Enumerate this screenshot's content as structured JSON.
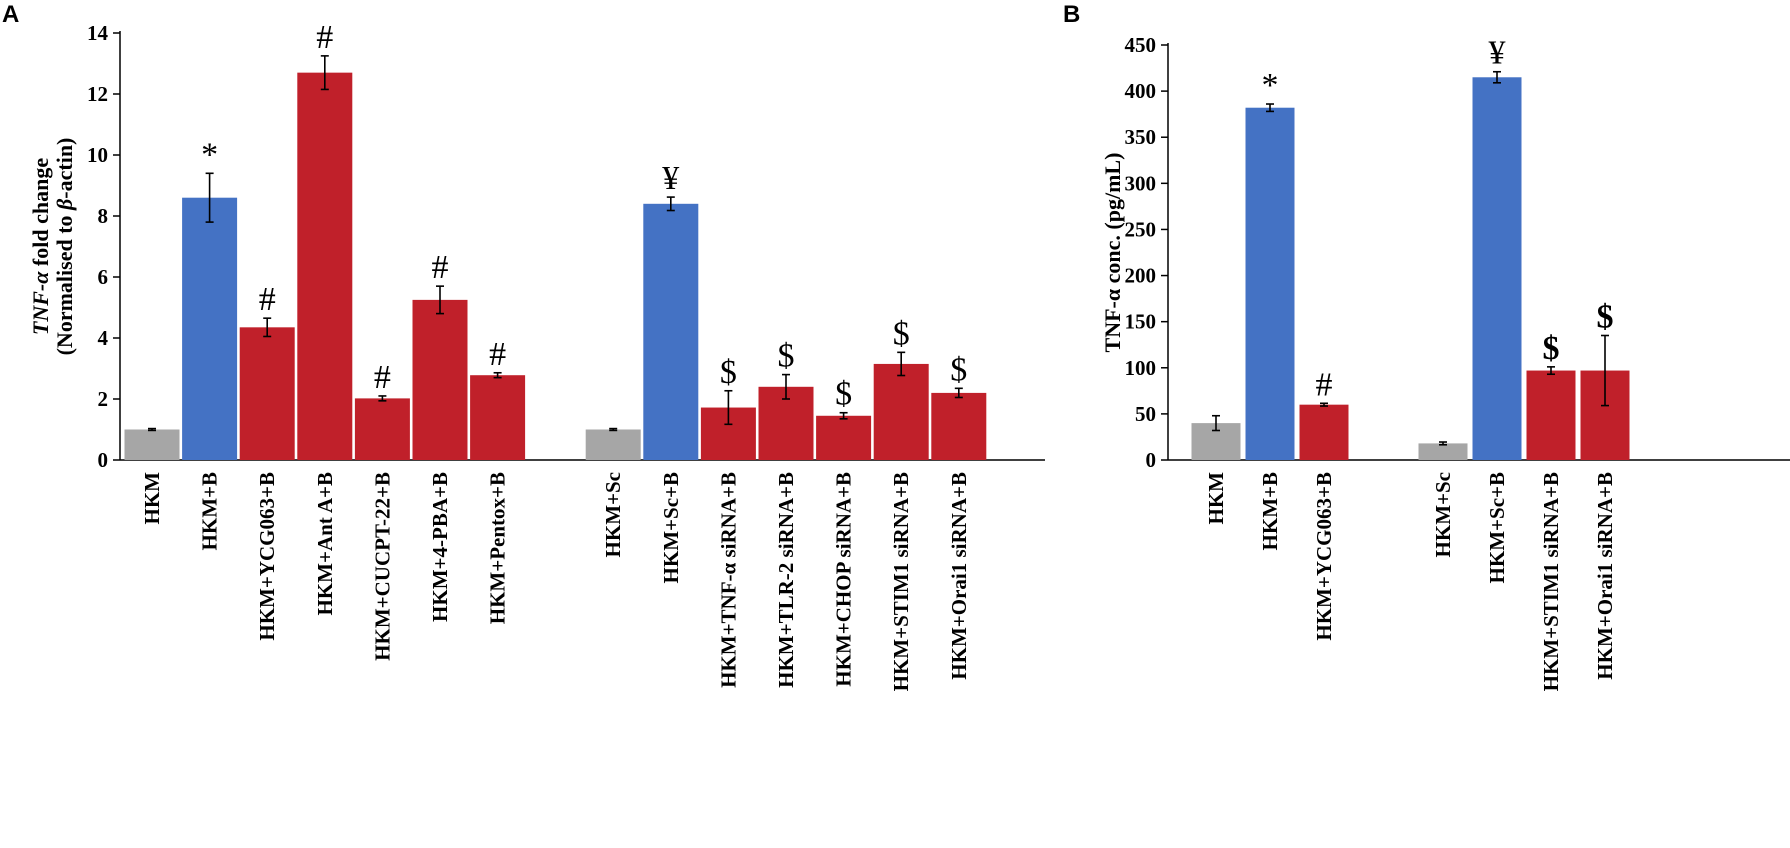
{
  "colors": {
    "gray": "#a6a6a6",
    "blue": "#4472c4",
    "red": "#c0202a",
    "axis": "#000000"
  },
  "chart_data": [
    {
      "panel": "A",
      "type": "bar",
      "title": "",
      "ylabel_line1": "TNF-α fold change",
      "ylabel_line2": "(Normalised to β-actin)",
      "ylabel_line1_parts": [
        "TNF-α",
        " fold change"
      ],
      "ylabel_line2_parts": [
        "(Normalised to ",
        "β",
        "-actin)"
      ],
      "ylim": [
        0,
        14
      ],
      "yticks": [
        0,
        2,
        4,
        6,
        8,
        10,
        12,
        14
      ],
      "groups": [
        {
          "bars": [
            {
              "label": "HKM",
              "value": 1.0,
              "error": 0.03,
              "color": "gray",
              "sig": ""
            },
            {
              "label": "HKM+B",
              "value": 8.6,
              "error": 0.8,
              "color": "blue",
              "sig": "*"
            },
            {
              "label": "HKM+YCG063+B",
              "value": 4.35,
              "error": 0.3,
              "color": "red",
              "sig": "#"
            },
            {
              "label": "HKM+Ant A+B",
              "value": 12.7,
              "error": 0.55,
              "color": "red",
              "sig": "#"
            },
            {
              "label": "HKM+CUCPT-22+B",
              "value": 2.02,
              "error": 0.08,
              "color": "red",
              "sig": "#"
            },
            {
              "label": "HKM+4-PBA+B",
              "value": 5.25,
              "error": 0.45,
              "color": "red",
              "sig": "#"
            },
            {
              "label": "HKM+Pentox+B",
              "value": 2.78,
              "error": 0.08,
              "color": "red",
              "sig": "#"
            }
          ]
        },
        {
          "bars": [
            {
              "label": "HKM+Sc",
              "value": 1.0,
              "error": 0.03,
              "color": "gray",
              "sig": ""
            },
            {
              "label": "HKM+Sc+B",
              "value": 8.4,
              "error": 0.22,
              "color": "blue",
              "sig": "¥"
            },
            {
              "label": "HKM+TNF-α siRNA+B",
              "value": 1.72,
              "error": 0.55,
              "color": "red",
              "sig": "$"
            },
            {
              "label": "HKM+TLR-2 siRNA+B",
              "value": 2.4,
              "error": 0.4,
              "color": "red",
              "sig": "$"
            },
            {
              "label": "HKM+CHOP siRNA+B",
              "value": 1.45,
              "error": 0.1,
              "color": "red",
              "sig": "$"
            },
            {
              "label": "HKM+STIM1 siRNA+B",
              "value": 3.15,
              "error": 0.38,
              "color": "red",
              "sig": "$"
            },
            {
              "label": "HKM+Orai1 siRNA+B",
              "value": 2.2,
              "error": 0.15,
              "color": "red",
              "sig": "$"
            }
          ]
        }
      ]
    },
    {
      "panel": "B",
      "type": "bar",
      "title": "",
      "ylabel_line1": "TNF-α conc. (pg/mL)",
      "ylim": [
        0,
        450
      ],
      "yticks": [
        0,
        50,
        100,
        150,
        200,
        250,
        300,
        350,
        400,
        450
      ],
      "groups": [
        {
          "bars": [
            {
              "label": "HKM",
              "value": 40,
              "error": 8,
              "color": "gray",
              "sig": ""
            },
            {
              "label": "HKM+B",
              "value": 382,
              "error": 4,
              "color": "blue",
              "sig": "*"
            },
            {
              "label": "HKM+YCG063+B",
              "value": 60,
              "error": 1.5,
              "color": "red",
              "sig": "#"
            }
          ]
        },
        {
          "bars": [
            {
              "label": "HKM+Sc",
              "value": 18,
              "error": 1.5,
              "color": "gray",
              "sig": ""
            },
            {
              "label": "HKM+Sc+B",
              "value": 415,
              "error": 6,
              "color": "blue",
              "sig": "¥"
            },
            {
              "label": "HKM+STIM1 siRNA+B",
              "value": 97,
              "error": 4,
              "color": "red",
              "sig": "$"
            },
            {
              "label": "HKM+Orai1 siRNA+B",
              "value": 97,
              "error": 38,
              "color": "red",
              "sig": "$"
            }
          ]
        }
      ]
    }
  ]
}
